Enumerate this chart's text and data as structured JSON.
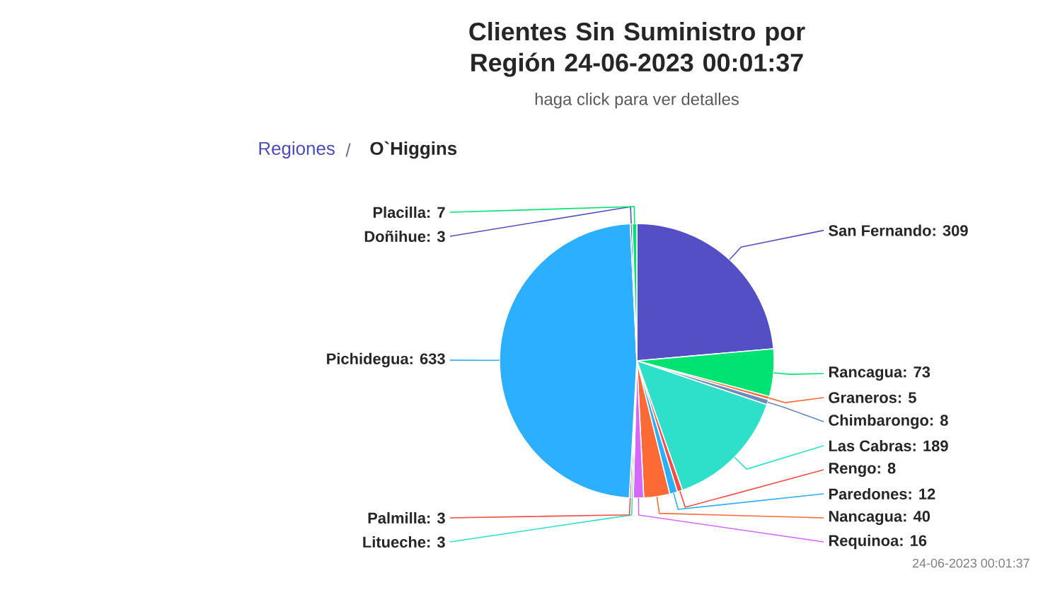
{
  "chart_data": {
    "type": "pie",
    "title": "Clientes Sin Suministro por Región 24-06-2023 00:01:37",
    "subtitle": "haga click para ver detalles",
    "categories": [
      "San Fernando",
      "Rancagua",
      "Graneros",
      "Chimbarongo",
      "Las Cabras",
      "Rengo",
      "Paredones",
      "Nancagua",
      "Requinoa",
      "Litueche",
      "Palmilla",
      "Pichidegua",
      "Doñihue",
      "Placilla"
    ],
    "values": [
      309,
      73,
      5,
      8,
      189,
      8,
      12,
      40,
      16,
      3,
      3,
      633,
      3,
      7
    ],
    "colors": [
      "#544fc5",
      "#00e272",
      "#fe6a35",
      "#6b8abc",
      "#2ee0ca",
      "#fa4b42",
      "#2caffe",
      "#fe6a35",
      "#d568fb",
      "#2ee0ca",
      "#fa4b42",
      "#2caffe",
      "#544fc5",
      "#00e272"
    ],
    "value_labels": [
      ": 309",
      ": 73",
      ": 5",
      ": 8",
      ": 189",
      ": 8",
      ": 12",
      ": 40",
      ": 16",
      ": 3",
      ": 3",
      ": 633",
      ": 3",
      ": 7"
    ],
    "annotations": [
      "Regiones",
      "/",
      "O`Higgins",
      "24-06-2023 00:01:37"
    ]
  }
}
